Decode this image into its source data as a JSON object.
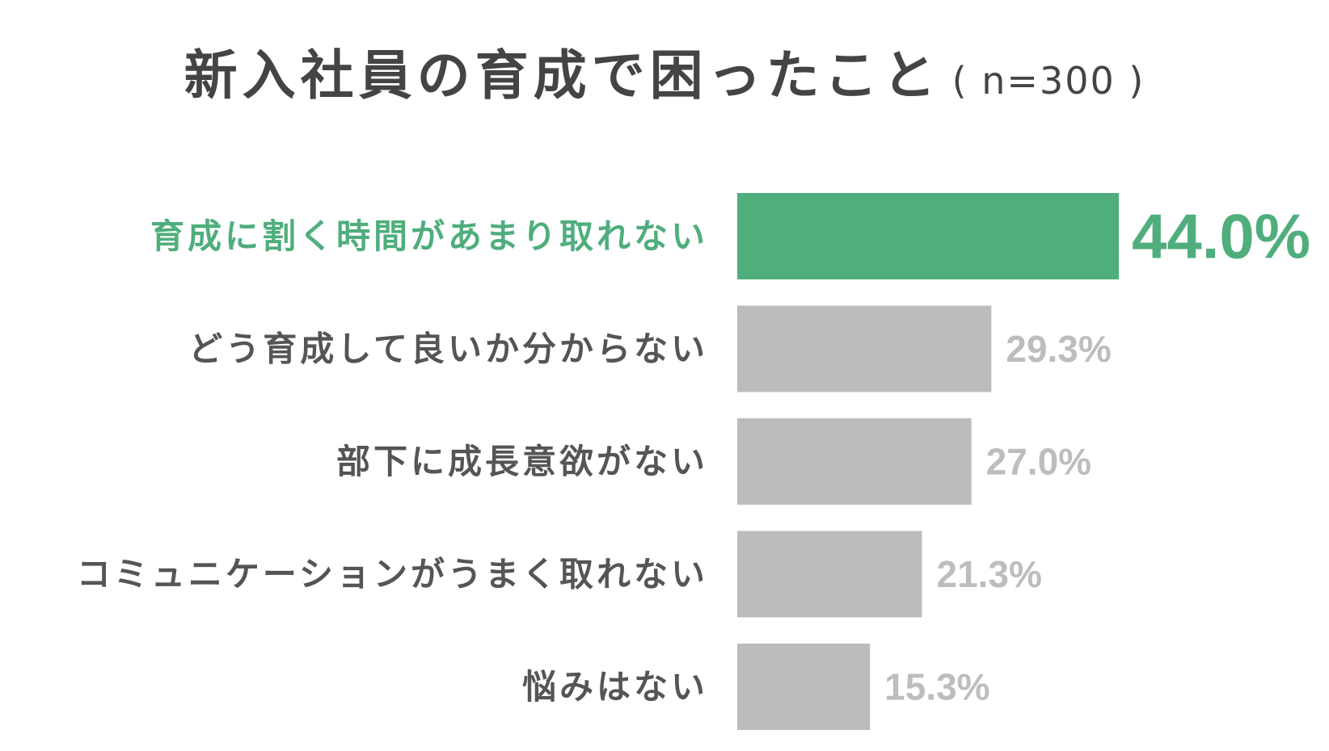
{
  "title": "新入社員の育成で困ったこと",
  "subtitle": "( n=300 )",
  "colors": {
    "highlight": "#4fae7c",
    "bar": "#bcbcbc",
    "label": "#555555",
    "value": "#bdbdbd",
    "title": "#444444"
  },
  "chart_data": {
    "type": "bar",
    "orientation": "horizontal",
    "title": "新入社員の育成で困ったこと",
    "subtitle": "( n=300 )",
    "categories": [
      "育成に割く時間があまり取れない",
      "どう育成して良いか分からない",
      "部下に成長意欲がない",
      "コミュニケーションがうまく取れない",
      "悩みはない"
    ],
    "values": [
      44.0,
      29.3,
      27.0,
      21.3,
      15.3
    ],
    "value_labels": [
      "44.0%",
      "29.3%",
      "27.0%",
      "21.3%",
      "15.3%"
    ],
    "highlight_index": 0,
    "xlim": [
      0,
      44
    ],
    "grid": false,
    "legend": "none"
  }
}
